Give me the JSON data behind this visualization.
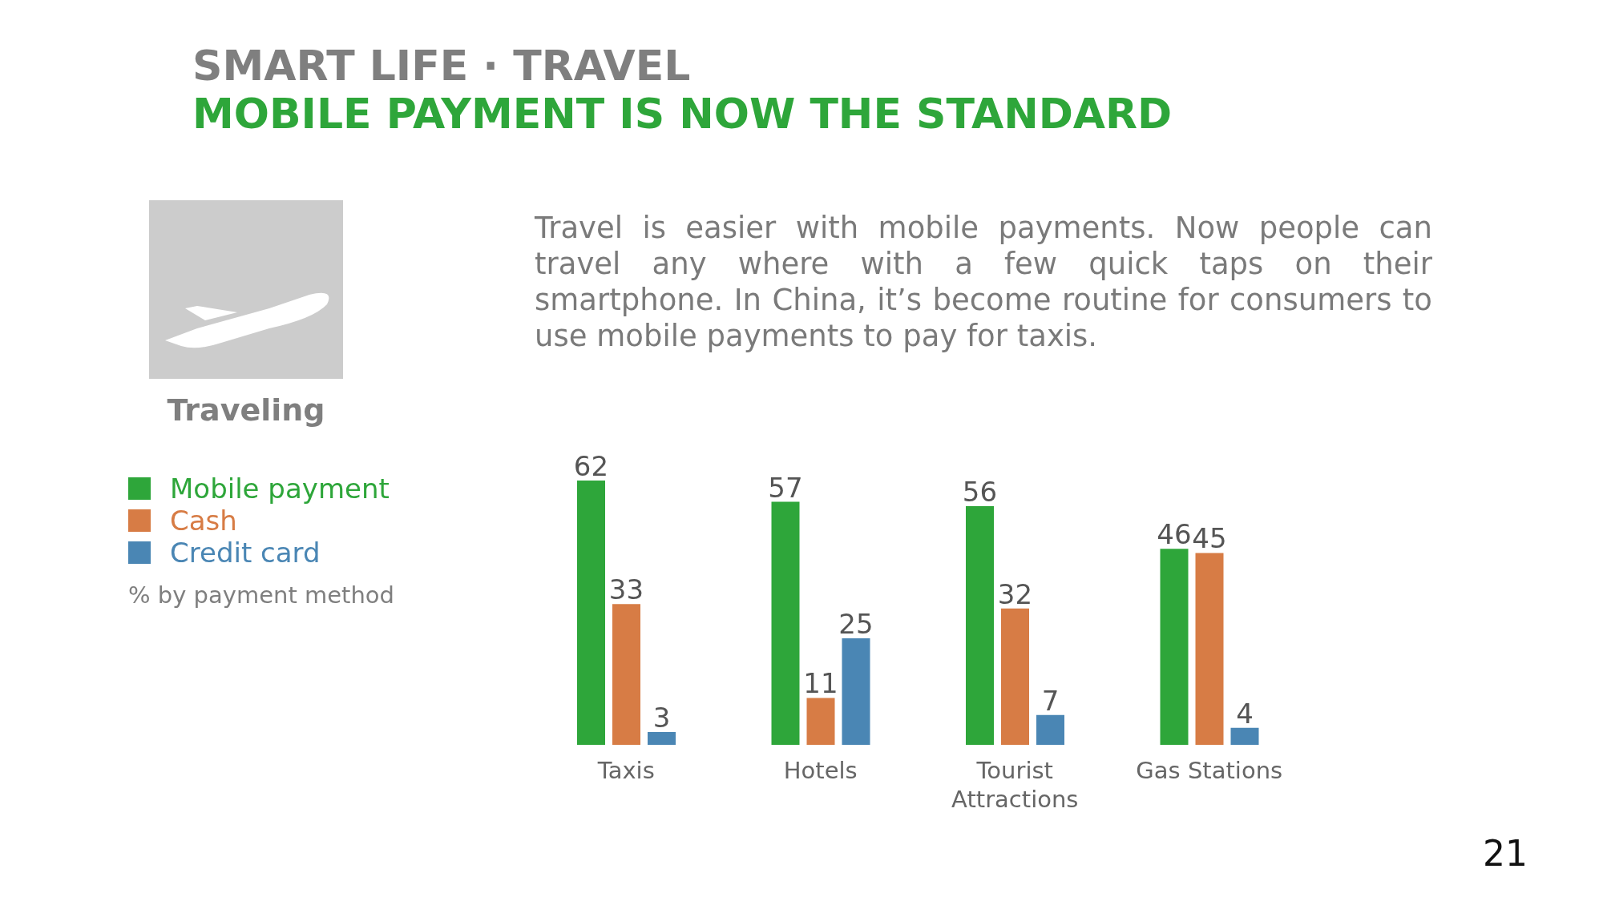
{
  "chart_data": {
    "type": "bar",
    "title": "SMART LIFE · TRAVEL",
    "subtitle": "MOBILE PAYMENT IS NOW THE STANDARD",
    "categories": [
      "Taxis",
      "Hotels",
      "Tourist Attractions",
      "Gas Stations"
    ],
    "series": [
      {
        "name": "Mobile payment",
        "color": "#2ea63a",
        "values": [
          62,
          57,
          56,
          46
        ]
      },
      {
        "name": "Cash",
        "color": "#d77c45",
        "values": [
          33,
          11,
          32,
          45
        ]
      },
      {
        "name": "Credit card",
        "color": "#4a86b4",
        "values": [
          3,
          25,
          7,
          4
        ]
      }
    ],
    "data_labels": true,
    "grid": false,
    "legend": "left",
    "annotations": [
      "Travel is easier with mobile payments. Now people can travel any where with a few quick taps on their smartphone. In China, it’s become routine for consumers to use mobile payments to pay for taxis.",
      "Traveling",
      "% by payment method",
      "21"
    ]
  }
}
